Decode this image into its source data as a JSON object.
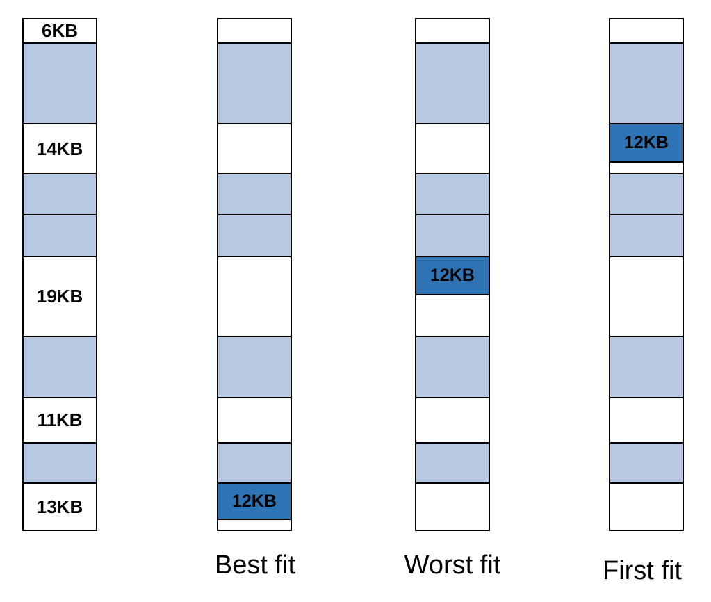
{
  "memory_layout": {
    "hole_labels": {
      "hole_6": "6KB",
      "hole_14": "14KB",
      "hole_19": "19KB",
      "hole_11": "11KB",
      "hole_13": "13KB"
    }
  },
  "strategies": {
    "best_fit": {
      "caption": "Best fit",
      "allocation_label": "12KB"
    },
    "worst_fit": {
      "caption": "Worst fit",
      "allocation_label": "12KB"
    },
    "first_fit": {
      "caption": "First fit",
      "allocation_label": "12KB"
    }
  },
  "colors": {
    "used": "#b7c9e2",
    "free": "#ffffff",
    "allocated": "#2e74b5",
    "border": "#000000"
  }
}
